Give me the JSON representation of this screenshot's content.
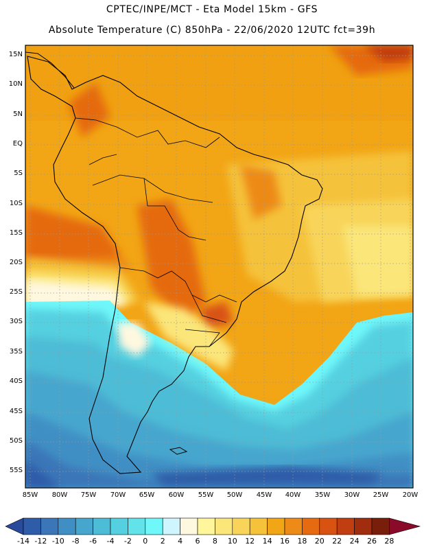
{
  "header": {
    "title_line1": "CPTEC/INPE/MCT -  Eta Model 15km - GFS",
    "title_line2": "Absolute Temperature (C) 850hPa - 22/06/2020 12UTC fct=39h"
  },
  "map": {
    "lat_labels": [
      "15N",
      "10N",
      "5N",
      "EQ",
      "5S",
      "10S",
      "15S",
      "20S",
      "25S",
      "30S",
      "35S",
      "40S",
      "45S",
      "50S",
      "55S"
    ],
    "lon_labels": [
      "85W",
      "80W",
      "75W",
      "70W",
      "65W",
      "60W",
      "55W",
      "50W",
      "45W",
      "40W",
      "35W",
      "30W",
      "25W",
      "20W"
    ]
  },
  "colorbar": {
    "labels": [
      "-14",
      "-12",
      "-10",
      "-8",
      "-6",
      "-4",
      "-2",
      "0",
      "2",
      "4",
      "6",
      "8",
      "10",
      "12",
      "14",
      "16",
      "18",
      "20",
      "22",
      "24",
      "26",
      "28"
    ],
    "colors": [
      "#2a4b9b",
      "#2f5ca8",
      "#3a76b8",
      "#3f8fc4",
      "#46a6ce",
      "#4dbcd6",
      "#55d0e0",
      "#62e3ea",
      "#6ff7fa",
      "#cff5ff",
      "#fff8e0",
      "#fff59a",
      "#fbe67a",
      "#f8d55a",
      "#f5c23a",
      "#f2a515",
      "#ed8a18",
      "#e56a10",
      "#d85212",
      "#c03e10",
      "#a02e0e",
      "#7a1e0c",
      "#8a0a2a"
    ]
  }
}
